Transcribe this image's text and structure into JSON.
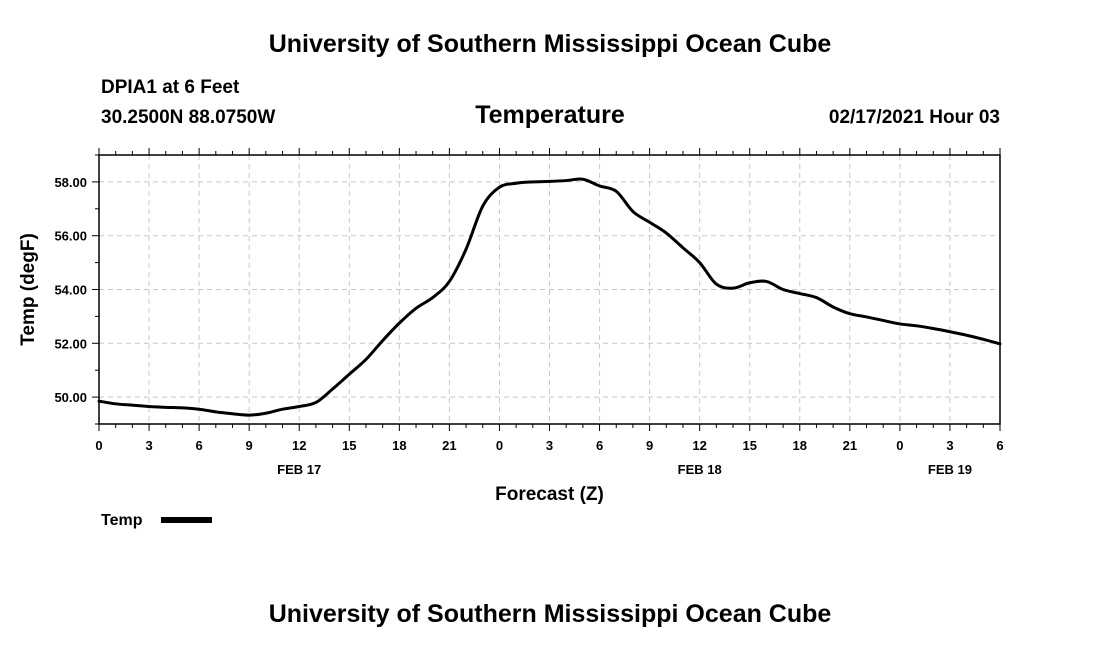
{
  "header": {
    "title": "University of Southern Mississippi Ocean Cube",
    "station": "DPIA1 at 6 Feet",
    "coordinates": "30.2500N 88.0750W",
    "variable": "Temperature",
    "datetime": "02/17/2021 Hour 03"
  },
  "footer": {
    "title": "University of Southern Mississippi Ocean Cube"
  },
  "chart_data": {
    "type": "line",
    "title": "Temperature",
    "xlabel": "Forecast (Z)",
    "ylabel": "Temp (degF)",
    "xlim": [
      0,
      54
    ],
    "ylim": [
      49.0,
      59.0
    ],
    "grid": true,
    "legend": "bottom-left",
    "y_ticks": [
      50,
      52,
      54,
      56,
      58
    ],
    "y_tick_labels": [
      "50.00",
      "52.00",
      "54.00",
      "56.00",
      "58.00"
    ],
    "x_ticks": [
      0,
      3,
      6,
      9,
      12,
      15,
      18,
      21,
      24,
      27,
      30,
      33,
      36,
      39,
      42,
      45,
      48,
      51,
      54
    ],
    "x_tick_labels": [
      "0",
      "3",
      "6",
      "9",
      "12",
      "15",
      "18",
      "21",
      "0",
      "3",
      "6",
      "9",
      "12",
      "15",
      "18",
      "21",
      "0",
      "3",
      "6"
    ],
    "day_labels": [
      {
        "x": 12,
        "label": "FEB 17"
      },
      {
        "x": 36,
        "label": "FEB 18"
      },
      {
        "x": 51,
        "label": "FEB 19"
      }
    ],
    "series": [
      {
        "name": "Temp",
        "color": "#000000",
        "x": [
          0,
          1,
          2,
          3,
          4,
          5,
          6,
          7,
          8,
          9,
          10,
          11,
          12,
          13,
          14,
          15,
          16,
          17,
          18,
          19,
          20,
          21,
          22,
          23,
          24,
          25,
          26,
          27,
          28,
          29,
          30,
          31,
          32,
          33,
          34,
          35,
          36,
          37,
          38,
          39,
          40,
          41,
          42,
          43,
          44,
          45,
          46,
          47,
          48,
          49,
          50,
          51,
          52,
          53,
          54
        ],
        "values": [
          49.85,
          49.75,
          49.7,
          49.65,
          49.62,
          49.6,
          49.55,
          49.45,
          49.38,
          49.33,
          49.4,
          49.55,
          49.65,
          49.8,
          50.3,
          50.85,
          51.4,
          52.1,
          52.75,
          53.3,
          53.7,
          54.3,
          55.5,
          57.1,
          57.8,
          57.95,
          58.0,
          58.02,
          58.05,
          58.1,
          57.85,
          57.65,
          56.9,
          56.5,
          56.1,
          55.55,
          55.0,
          54.2,
          54.05,
          54.25,
          54.3,
          54.0,
          53.85,
          53.7,
          53.35,
          53.1,
          52.98,
          52.85,
          52.72,
          52.65,
          52.55,
          52.43,
          52.3,
          52.15,
          51.98
        ]
      }
    ]
  }
}
